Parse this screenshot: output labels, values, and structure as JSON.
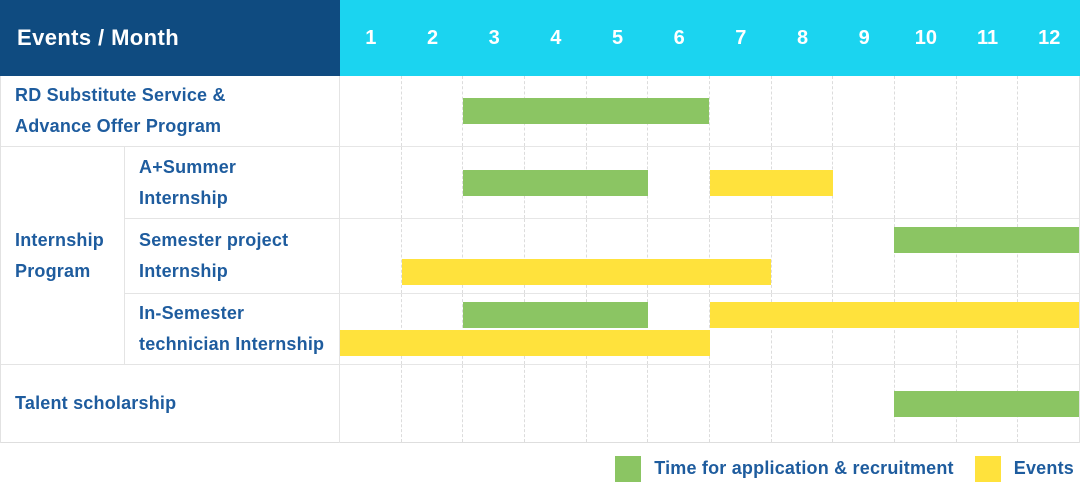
{
  "header": {
    "title": "Events / Month",
    "months": [
      "1",
      "2",
      "3",
      "4",
      "5",
      "6",
      "7",
      "8",
      "9",
      "10",
      "11",
      "12"
    ]
  },
  "rows": {
    "rd": {
      "label": "RD Substitute Service &\nAdvance Offer Program"
    },
    "internship_group": {
      "label": "Internship\nProgram"
    },
    "a_summer": {
      "label": "A+Summer\nInternship"
    },
    "semester_project": {
      "label": "Semester project\nInternship"
    },
    "in_semester": {
      "label": "In-Semester\ntechnician Internship"
    },
    "talent": {
      "label": "Talent scholarship"
    }
  },
  "legend": {
    "items": [
      {
        "label": "Time for application & recruitment",
        "color_key": "green"
      },
      {
        "label": "Events",
        "color_key": "yellow"
      }
    ]
  },
  "colors": {
    "green": "#8bc563",
    "yellow": "#ffe23c",
    "header_navy": "#0f4b80",
    "header_cyan": "#1bd4f0",
    "label_text": "#1e5c9e"
  },
  "chart_data": {
    "type": "bar",
    "variant": "gantt",
    "title": "Events / Month",
    "x": {
      "unit": "month",
      "ticks": [
        1,
        2,
        3,
        4,
        5,
        6,
        7,
        8,
        9,
        10,
        11,
        12
      ],
      "range": [
        1,
        12
      ]
    },
    "grid": true,
    "legend_position": "bottom-right",
    "series_legend": [
      {
        "name": "Time for application & recruitment",
        "color": "green"
      },
      {
        "name": "Events",
        "color": "yellow"
      }
    ],
    "rows": [
      {
        "id": "rd",
        "label": "RD Substitute Service & Advance Offer Program",
        "bars": [
          {
            "series": "Time for application & recruitment",
            "color": "green",
            "start_month": 3,
            "end_month": 6,
            "lane": "single"
          }
        ]
      },
      {
        "id": "a-summer",
        "label": "A+Summer Internship",
        "bars": [
          {
            "series": "Time for application & recruitment",
            "color": "green",
            "start_month": 3,
            "end_month": 5,
            "lane": "single"
          },
          {
            "series": "Events",
            "color": "yellow",
            "start_month": 7,
            "end_month": 8,
            "lane": "single"
          }
        ]
      },
      {
        "id": "semester-project",
        "label": "Semester project Internship",
        "bars": [
          {
            "series": "Time for application & recruitment",
            "color": "green",
            "start_month": 10,
            "end_month": 12,
            "lane": "top"
          },
          {
            "series": "Events",
            "color": "yellow",
            "start_month": 2,
            "end_month": 7,
            "lane": "bottom"
          }
        ]
      },
      {
        "id": "in-semester",
        "label": "In-Semester technician Internship",
        "bars": [
          {
            "series": "Time for application & recruitment",
            "color": "green",
            "start_month": 3,
            "end_month": 5,
            "lane": "top"
          },
          {
            "series": "Events",
            "color": "yellow",
            "start_month": 7,
            "end_month": 12,
            "lane": "top"
          },
          {
            "series": "Events",
            "color": "yellow",
            "start_month": 1,
            "end_month": 6,
            "lane": "bottom"
          }
        ]
      },
      {
        "id": "talent",
        "label": "Talent scholarship",
        "bars": [
          {
            "series": "Time for application & recruitment",
            "color": "green",
            "start_month": 10,
            "end_month": 12,
            "lane": "single"
          }
        ]
      }
    ]
  }
}
